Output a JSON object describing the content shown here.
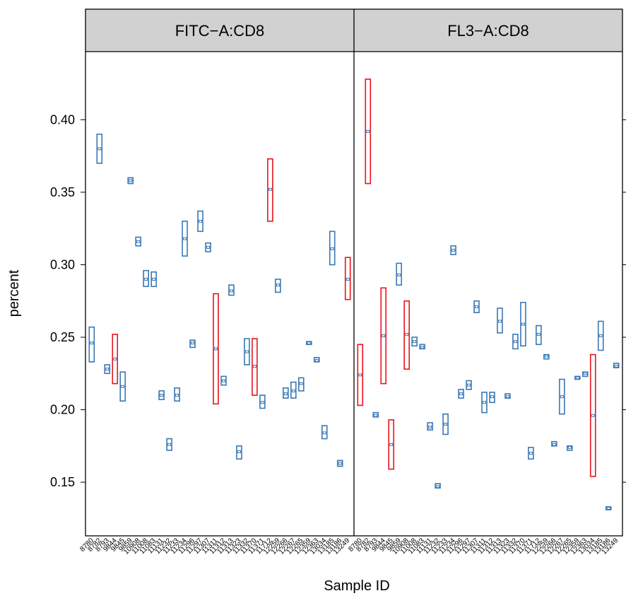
{
  "chart_data": {
    "type": "box",
    "ylabel": "percent",
    "xlabel": "Sample ID",
    "ylim": [
      0.113,
      0.447
    ],
    "yticks": [
      "0.15",
      "0.20",
      "0.25",
      "0.30",
      "0.35",
      "0.40"
    ],
    "colors": {
      "normal": "#3a78b5",
      "highlight": "#e8141c",
      "strip": "#d1d1d1"
    },
    "panels": [
      {
        "title": "FITC−A:CD8",
        "categories": [
          "8780",
          "8782",
          "8793",
          "9844",
          "9845",
          "9859",
          "10908",
          "11008",
          "11083",
          "11131",
          "11232",
          "11233",
          "11234",
          "11296",
          "11297",
          "11307",
          "11311",
          "11312",
          "11313",
          "11323",
          "11332",
          "11370",
          "11371",
          "11712",
          "12259",
          "12266",
          "12267",
          "12265",
          "12359",
          "12363",
          "13034",
          "13185",
          "13186",
          "13249"
        ],
        "boxes": [
          {
            "low": 0.233,
            "high": 0.257,
            "mid": 0.246,
            "hl": false
          },
          {
            "low": 0.37,
            "high": 0.39,
            "mid": 0.38,
            "hl": false
          },
          {
            "low": 0.225,
            "high": 0.231,
            "mid": 0.228,
            "hl": false
          },
          {
            "low": 0.218,
            "high": 0.252,
            "mid": 0.235,
            "hl": true
          },
          {
            "low": 0.206,
            "high": 0.226,
            "mid": 0.216,
            "hl": false
          },
          {
            "low": 0.356,
            "high": 0.36,
            "mid": 0.358,
            "hl": false
          },
          {
            "low": 0.313,
            "high": 0.319,
            "mid": 0.316,
            "hl": false
          },
          {
            "low": 0.285,
            "high": 0.296,
            "mid": 0.29,
            "hl": false
          },
          {
            "low": 0.285,
            "high": 0.295,
            "mid": 0.29,
            "hl": false
          },
          {
            "low": 0.207,
            "high": 0.213,
            "mid": 0.21,
            "hl": false
          },
          {
            "low": 0.172,
            "high": 0.18,
            "mid": 0.176,
            "hl": false
          },
          {
            "low": 0.206,
            "high": 0.215,
            "mid": 0.21,
            "hl": false
          },
          {
            "low": 0.306,
            "high": 0.33,
            "mid": 0.318,
            "hl": false
          },
          {
            "low": 0.243,
            "high": 0.248,
            "mid": 0.246,
            "hl": false
          },
          {
            "low": 0.323,
            "high": 0.337,
            "mid": 0.33,
            "hl": false
          },
          {
            "low": 0.309,
            "high": 0.315,
            "mid": 0.312,
            "hl": false
          },
          {
            "low": 0.204,
            "high": 0.28,
            "mid": 0.242,
            "hl": true
          },
          {
            "low": 0.217,
            "high": 0.223,
            "mid": 0.22,
            "hl": false
          },
          {
            "low": 0.279,
            "high": 0.286,
            "mid": 0.282,
            "hl": false
          },
          {
            "low": 0.166,
            "high": 0.175,
            "mid": 0.171,
            "hl": false
          },
          {
            "low": 0.231,
            "high": 0.249,
            "mid": 0.24,
            "hl": false
          },
          {
            "low": 0.21,
            "high": 0.249,
            "mid": 0.23,
            "hl": true
          },
          {
            "low": 0.201,
            "high": 0.21,
            "mid": 0.205,
            "hl": false
          },
          {
            "low": 0.33,
            "high": 0.373,
            "mid": 0.352,
            "hl": true
          },
          {
            "low": 0.281,
            "high": 0.29,
            "mid": 0.286,
            "hl": false
          },
          {
            "low": 0.208,
            "high": 0.215,
            "mid": 0.211,
            "hl": false
          },
          {
            "low": 0.208,
            "high": 0.219,
            "mid": 0.213,
            "hl": false
          },
          {
            "low": 0.213,
            "high": 0.222,
            "mid": 0.218,
            "hl": false
          },
          {
            "low": 0.245,
            "high": 0.247,
            "mid": 0.246,
            "hl": false
          },
          {
            "low": 0.233,
            "high": 0.236,
            "mid": 0.234,
            "hl": false
          },
          {
            "low": 0.18,
            "high": 0.189,
            "mid": 0.184,
            "hl": false
          },
          {
            "low": 0.3,
            "high": 0.323,
            "mid": 0.311,
            "hl": false
          },
          {
            "low": 0.161,
            "high": 0.165,
            "mid": 0.163,
            "hl": false
          },
          {
            "low": 0.276,
            "high": 0.305,
            "mid": 0.29,
            "hl": true
          }
        ]
      },
      {
        "title": "FL3−A:CD8",
        "categories": [
          "8780",
          "8782",
          "8793",
          "9844",
          "9845",
          "9859",
          "10908",
          "11008",
          "11083",
          "11131",
          "11232",
          "11233",
          "11234",
          "11296",
          "11297",
          "11307",
          "11311",
          "11312",
          "11313",
          "11323",
          "11332",
          "11370",
          "11371",
          "11712",
          "12259",
          "12266",
          "12267",
          "12265",
          "12359",
          "12363",
          "13034",
          "13185",
          "13186",
          "13249"
        ],
        "boxes": [
          {
            "low": 0.203,
            "high": 0.245,
            "mid": 0.224,
            "hl": true
          },
          {
            "low": 0.356,
            "high": 0.428,
            "mid": 0.392,
            "hl": true
          },
          {
            "low": 0.195,
            "high": 0.198,
            "mid": 0.196,
            "hl": false
          },
          {
            "low": 0.218,
            "high": 0.284,
            "mid": 0.251,
            "hl": true
          },
          {
            "low": 0.159,
            "high": 0.193,
            "mid": 0.176,
            "hl": true
          },
          {
            "low": 0.286,
            "high": 0.301,
            "mid": 0.293,
            "hl": false
          },
          {
            "low": 0.228,
            "high": 0.275,
            "mid": 0.252,
            "hl": true
          },
          {
            "low": 0.244,
            "high": 0.25,
            "mid": 0.247,
            "hl": false
          },
          {
            "low": 0.242,
            "high": 0.245,
            "mid": 0.243,
            "hl": false
          },
          {
            "low": 0.186,
            "high": 0.191,
            "mid": 0.188,
            "hl": false
          },
          {
            "low": 0.146,
            "high": 0.149,
            "mid": 0.147,
            "hl": false
          },
          {
            "low": 0.183,
            "high": 0.197,
            "mid": 0.19,
            "hl": false
          },
          {
            "low": 0.307,
            "high": 0.313,
            "mid": 0.31,
            "hl": false
          },
          {
            "low": 0.208,
            "high": 0.214,
            "mid": 0.211,
            "hl": false
          },
          {
            "low": 0.214,
            "high": 0.22,
            "mid": 0.217,
            "hl": false
          },
          {
            "low": 0.267,
            "high": 0.275,
            "mid": 0.271,
            "hl": false
          },
          {
            "low": 0.198,
            "high": 0.212,
            "mid": 0.205,
            "hl": false
          },
          {
            "low": 0.205,
            "high": 0.212,
            "mid": 0.209,
            "hl": false
          },
          {
            "low": 0.253,
            "high": 0.27,
            "mid": 0.261,
            "hl": false
          },
          {
            "low": 0.208,
            "high": 0.211,
            "mid": 0.209,
            "hl": false
          },
          {
            "low": 0.242,
            "high": 0.252,
            "mid": 0.247,
            "hl": false
          },
          {
            "low": 0.244,
            "high": 0.274,
            "mid": 0.259,
            "hl": false
          },
          {
            "low": 0.166,
            "high": 0.174,
            "mid": 0.17,
            "hl": false
          },
          {
            "low": 0.245,
            "high": 0.258,
            "mid": 0.252,
            "hl": false
          },
          {
            "low": 0.235,
            "high": 0.238,
            "mid": 0.237,
            "hl": false
          },
          {
            "low": 0.175,
            "high": 0.178,
            "mid": 0.176,
            "hl": false
          },
          {
            "low": 0.197,
            "high": 0.221,
            "mid": 0.209,
            "hl": false
          },
          {
            "low": 0.172,
            "high": 0.175,
            "mid": 0.174,
            "hl": false
          },
          {
            "low": 0.221,
            "high": 0.223,
            "mid": 0.222,
            "hl": false
          },
          {
            "low": 0.223,
            "high": 0.226,
            "mid": 0.225,
            "hl": false
          },
          {
            "low": 0.154,
            "high": 0.238,
            "mid": 0.196,
            "hl": true
          },
          {
            "low": 0.241,
            "high": 0.261,
            "mid": 0.251,
            "hl": false
          },
          {
            "low": 0.131,
            "high": 0.133,
            "mid": 0.132,
            "hl": false
          },
          {
            "low": 0.229,
            "high": 0.232,
            "mid": 0.23,
            "hl": false
          }
        ]
      }
    ]
  }
}
